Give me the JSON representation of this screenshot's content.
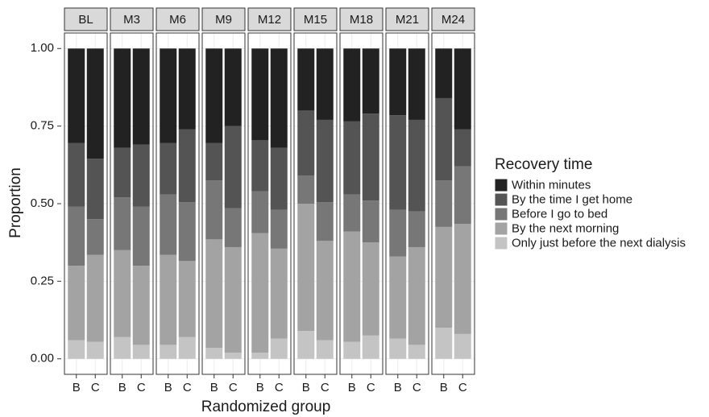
{
  "chart_data": {
    "type": "stacked-bar",
    "facets": [
      "BL",
      "M3",
      "M6",
      "M9",
      "M12",
      "M15",
      "M18",
      "M21",
      "M24"
    ],
    "categories": [
      "B",
      "C"
    ],
    "x_label": "Randomized group",
    "y_label": "Proportion",
    "legend_title": "Recovery time",
    "ylim": [
      -0.05,
      1.05
    ],
    "yticks": [
      {
        "value": 0,
        "label": "0.00"
      },
      {
        "value": 0.25,
        "label": "0.25"
      },
      {
        "value": 0.5,
        "label": "0.50"
      },
      {
        "value": 0.75,
        "label": "0.75"
      },
      {
        "value": 1,
        "label": "1.00"
      }
    ],
    "grid": true,
    "series": [
      {
        "name": "Within minutes",
        "color": "#222222",
        "values": [
          [
            0.305,
            0.355
          ],
          [
            0.32,
            0.31
          ],
          [
            0.305,
            0.26
          ],
          [
            0.305,
            0.25
          ],
          [
            0.295,
            0.32
          ],
          [
            0.2,
            0.23
          ],
          [
            0.235,
            0.21
          ],
          [
            0.215,
            0.23
          ],
          [
            0.16,
            0.26
          ]
        ]
      },
      {
        "name": "By the time I get home",
        "color": "#545454",
        "values": [
          [
            0.205,
            0.195
          ],
          [
            0.16,
            0.2
          ],
          [
            0.165,
            0.235
          ],
          [
            0.12,
            0.265
          ],
          [
            0.165,
            0.2
          ],
          [
            0.21,
            0.265
          ],
          [
            0.235,
            0.28
          ],
          [
            0.305,
            0.295
          ],
          [
            0.265,
            0.12
          ]
        ]
      },
      {
        "name": "Before I go to bed",
        "color": "#777777",
        "values": [
          [
            0.19,
            0.115
          ],
          [
            0.17,
            0.19
          ],
          [
            0.195,
            0.19
          ],
          [
            0.19,
            0.125
          ],
          [
            0.135,
            0.125
          ],
          [
            0.09,
            0.125
          ],
          [
            0.12,
            0.135
          ],
          [
            0.15,
            0.115
          ],
          [
            0.15,
            0.185
          ]
        ]
      },
      {
        "name": "By the next morning",
        "color": "#a3a3a3",
        "values": [
          [
            0.24,
            0.28
          ],
          [
            0.28,
            0.255
          ],
          [
            0.29,
            0.245
          ],
          [
            0.35,
            0.34
          ],
          [
            0.385,
            0.29
          ],
          [
            0.41,
            0.32
          ],
          [
            0.355,
            0.3
          ],
          [
            0.265,
            0.315
          ],
          [
            0.325,
            0.355
          ]
        ]
      },
      {
        "name": "Only just before the next dialysis",
        "color": "#c4c4c4",
        "values": [
          [
            0.06,
            0.055
          ],
          [
            0.07,
            0.045
          ],
          [
            0.045,
            0.07
          ],
          [
            0.035,
            0.02
          ],
          [
            0.02,
            0.065
          ],
          [
            0.09,
            0.06
          ],
          [
            0.055,
            0.075
          ],
          [
            0.065,
            0.045
          ],
          [
            0.1,
            0.08
          ]
        ]
      }
    ]
  }
}
